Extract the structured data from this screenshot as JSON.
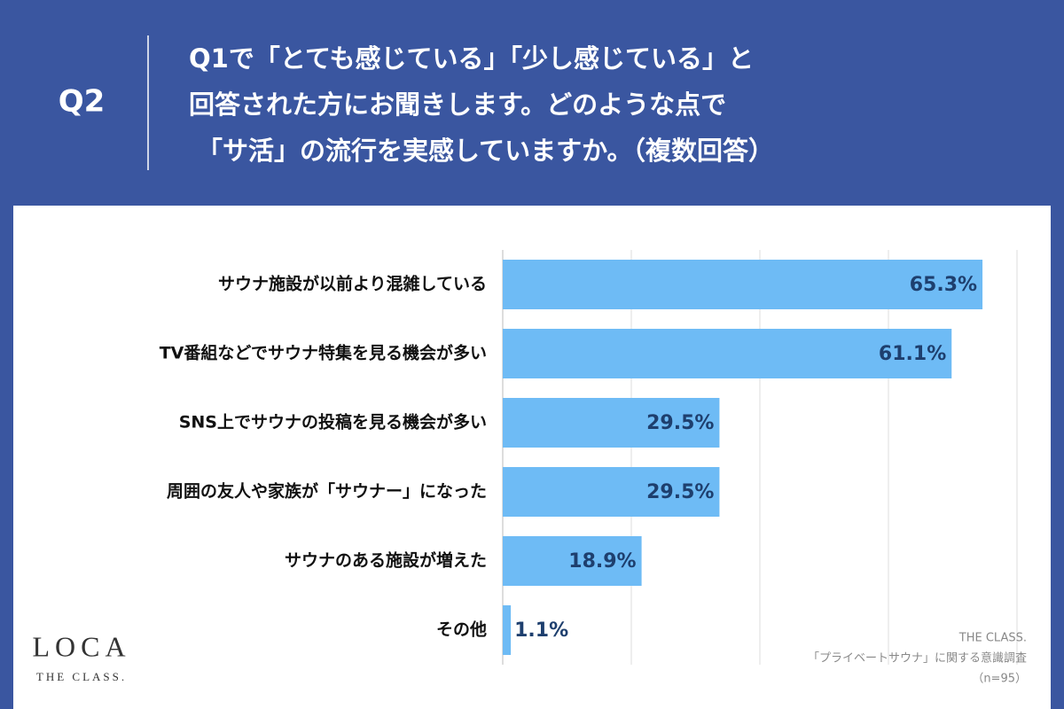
{
  "header": {
    "label": "Q2",
    "question_lines": [
      "Q1で「とても感じている」「少し感じている」と",
      "回答された方にお聞きします。どのような点で",
      "「サ活」の流行を実感していますか。（複数回答）"
    ]
  },
  "chart_data": {
    "type": "bar",
    "orientation": "horizontal",
    "categories": [
      "サウナ施設が以前より混雑している",
      "TV番組などでサウナ特集を見る機会が多い",
      "SNS上でサウナの投稿を見る機会が多い",
      "周囲の友人や家族が「サウナー」になった",
      "サウナのある施設が増えた",
      "その他"
    ],
    "values": [
      65.3,
      61.1,
      29.5,
      29.5,
      18.9,
      1.1
    ],
    "value_labels": [
      "65.3%",
      "61.1%",
      "29.5%",
      "29.5%",
      "18.9%",
      "1.1%"
    ],
    "color": "#6ebbf5",
    "xlim": [
      0,
      70
    ],
    "xticks": [
      0,
      17.5,
      35,
      52.5,
      70
    ],
    "tick_labels": false,
    "grid": true
  },
  "footer": {
    "logo": "LOCA",
    "logo_sub": "THE CLASS.",
    "source_lines": [
      "THE CLASS.",
      "「プライベートサウナ」に関する意識調査",
      "（n=95）"
    ]
  }
}
